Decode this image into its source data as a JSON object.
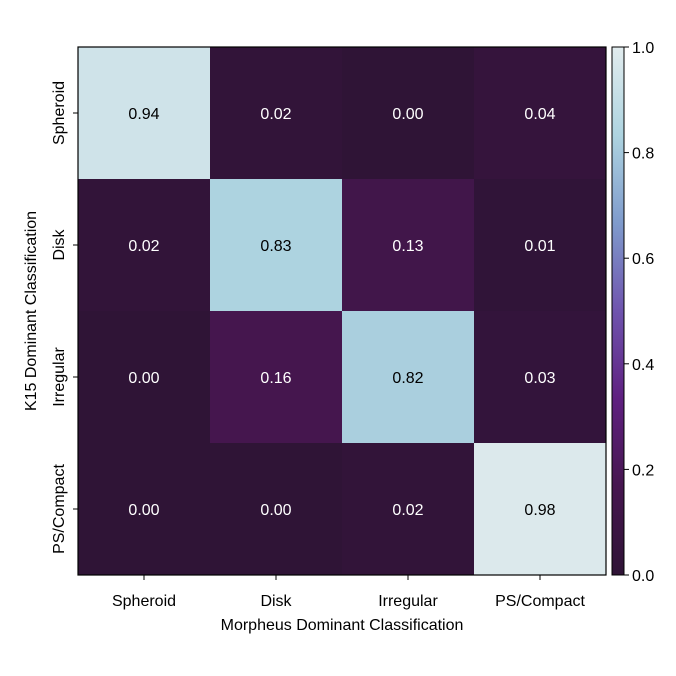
{
  "chart_data": {
    "type": "heatmap",
    "title": "",
    "xlabel": "Morpheus Dominant Classification",
    "ylabel": "K15 Dominant Classification",
    "x_categories": [
      "Spheroid",
      "Disk",
      "Irregular",
      "PS/Compact"
    ],
    "y_categories": [
      "Spheroid",
      "Disk",
      "Irregular",
      "PS/Compact"
    ],
    "values": [
      [
        0.94,
        0.02,
        0.0,
        0.04
      ],
      [
        0.02,
        0.83,
        0.13,
        0.01
      ],
      [
        0.0,
        0.16,
        0.82,
        0.03
      ],
      [
        0.0,
        0.0,
        0.02,
        0.98
      ]
    ],
    "cell_labels": [
      [
        "0.94",
        "0.02",
        "0.00",
        "0.04"
      ],
      [
        "0.02",
        "0.83",
        "0.13",
        "0.01"
      ],
      [
        "0.00",
        "0.16",
        "0.82",
        "0.03"
      ],
      [
        "0.00",
        "0.00",
        "0.02",
        "0.98"
      ]
    ],
    "colorbar": {
      "range": [
        0.0,
        1.0
      ],
      "ticks": [
        0.0,
        0.2,
        0.4,
        0.6,
        0.8,
        1.0
      ],
      "tick_labels": [
        "0.0",
        "0.2",
        "0.4",
        "0.6",
        "0.8",
        "1.0"
      ],
      "colormap": "twilight-shifted (upper half)",
      "color_stops": [
        "#2f1436",
        "#46164f",
        "#5f2080",
        "#6f54ae",
        "#7f9bcc",
        "#aed4e0",
        "#e2ecee"
      ]
    },
    "grid": false,
    "legend": "colorbar-right"
  }
}
